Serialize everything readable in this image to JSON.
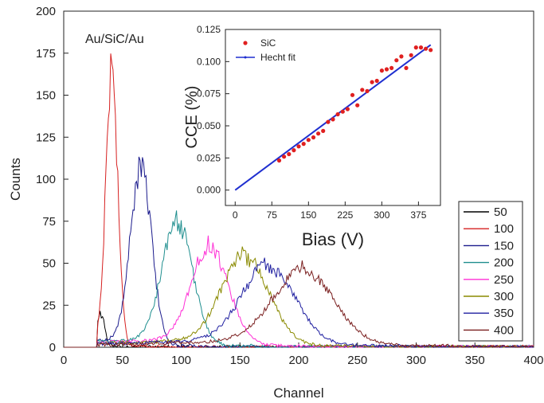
{
  "chart_data": [
    {
      "type": "line",
      "annotation": "Au/SiC/Au",
      "xlabel": "Channel",
      "ylabel": "Counts",
      "xlim": [
        0,
        400
      ],
      "ylim": [
        0,
        200
      ],
      "x_ticks": [
        "0",
        "50",
        "100",
        "150",
        "200",
        "250",
        "300",
        "350",
        "400"
      ],
      "y_ticks": [
        "0",
        "25",
        "50",
        "75",
        "100",
        "125",
        "150",
        "175",
        "200"
      ],
      "legend_position": "bottom-right",
      "series": [
        {
          "name": "50",
          "color": "#000000",
          "peak_x": 32,
          "peak_y": 18,
          "width": 3
        },
        {
          "name": "100",
          "color": "#d62020",
          "peak_x": 41,
          "peak_y": 163,
          "width": 5
        },
        {
          "name": "150",
          "color": "#1a1a8c",
          "peak_x": 66,
          "peak_y": 104,
          "width": 9
        },
        {
          "name": "200",
          "color": "#1e8e8e",
          "peak_x": 97,
          "peak_y": 72,
          "width": 13
        },
        {
          "name": "250",
          "color": "#ff2fd6",
          "peak_x": 125,
          "peak_y": 57,
          "width": 16
        },
        {
          "name": "300",
          "color": "#8a8a00",
          "peak_x": 155,
          "peak_y": 52,
          "width": 20
        },
        {
          "name": "350",
          "color": "#1f1fa0",
          "peak_x": 175,
          "peak_y": 45,
          "width": 23
        },
        {
          "name": "400",
          "color": "#7a1f1f",
          "peak_x": 205,
          "peak_y": 43,
          "width": 26
        }
      ]
    },
    {
      "type": "scatter",
      "xlabel": "Bias (V)",
      "ylabel": "CCE (%)",
      "xlim": [
        -20,
        420
      ],
      "ylim": [
        -0.012,
        0.125
      ],
      "x_ticks": [
        "0",
        "75",
        "150",
        "225",
        "300",
        "375"
      ],
      "y_ticks": [
        "0.000",
        "0.025",
        "0.050",
        "0.075",
        "0.100",
        "0.125"
      ],
      "legend_position": "top-left",
      "series": [
        {
          "name": "SiC",
          "color": "#e02020",
          "x": [
            90,
            100,
            110,
            120,
            130,
            140,
            150,
            160,
            170,
            180,
            190,
            200,
            210,
            220,
            230,
            240,
            250,
            260,
            270,
            280,
            290,
            300,
            310,
            320,
            330,
            340,
            350,
            360,
            370,
            380,
            390,
            400
          ],
          "y": [
            0.023,
            0.026,
            0.028,
            0.031,
            0.034,
            0.036,
            0.039,
            0.041,
            0.044,
            0.046,
            0.053,
            0.055,
            0.059,
            0.061,
            0.063,
            0.074,
            0.066,
            0.078,
            0.077,
            0.084,
            0.085,
            0.093,
            0.094,
            0.095,
            0.101,
            0.104,
            0.095,
            0.105,
            0.111,
            0.111,
            0.11,
            0.109
          ]
        },
        {
          "name": "Hecht fit",
          "color": "#1f2fd0",
          "x": [
            0,
            400
          ],
          "y": [
            0.0,
            0.113
          ]
        }
      ]
    }
  ]
}
